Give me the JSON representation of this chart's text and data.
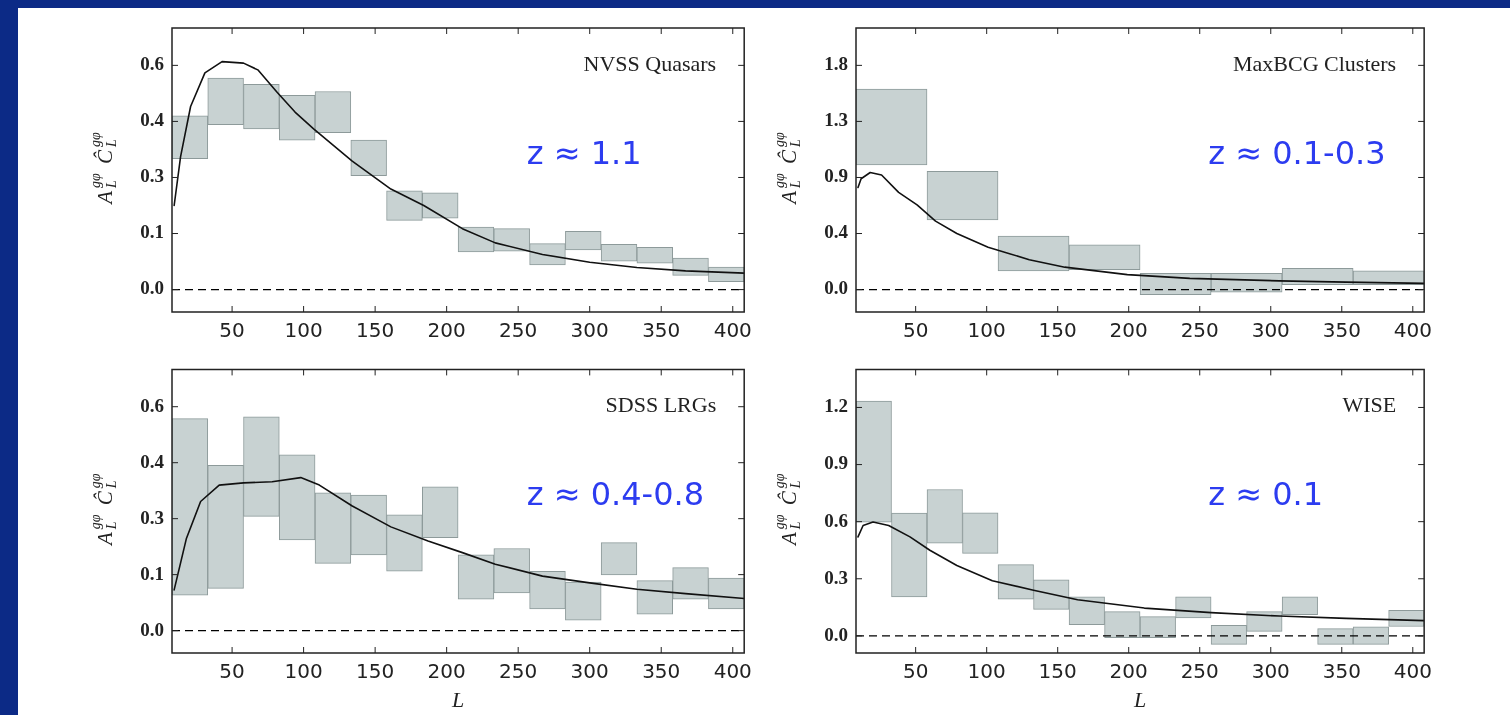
{
  "chart_data": [
    {
      "type": "bar",
      "title": "NVSS Quasars",
      "ylabel": "A$_{L}$$^{gφ}$ Ĉ$_{L}$$^{gφ}$",
      "annotations": [
        "z ≈ 1.1"
      ],
      "xlim": [
        8,
        408
      ],
      "xticks": [
        50,
        100,
        150,
        200,
        250,
        300,
        350,
        400
      ],
      "ylim": [
        -0.06,
        0.7
      ],
      "yticks": [
        {
          "value": 0,
          "label": "0.0"
        },
        {
          "value": 0.15,
          "label": "0.1"
        },
        {
          "value": 0.3,
          "label": "0.3"
        },
        {
          "value": 0.45,
          "label": "0.4"
        },
        {
          "value": 0.6,
          "label": "0.6"
        }
      ],
      "ref_lines": [
        {
          "axis": "y",
          "value": 0,
          "color": "#000000",
          "line_style": "dashed"
        }
      ],
      "series": [
        {
          "color": "#c8d2d2",
          "x": [
            20.5,
            45.5,
            70.5,
            95.5,
            120.5,
            145.5,
            170.5,
            195.5,
            220.5,
            245.5,
            270.5,
            295.5,
            320.5,
            345.5,
            370.5,
            395.5
          ],
          "base": [
            0.35,
            0.441,
            0.43,
            0.4,
            0.42,
            0.305,
            0.185,
            0.191,
            0.101,
            0.103,
            0.066,
            0.106,
            0.076,
            0.071,
            0.038,
            0.021
          ],
          "values": [
            0.115,
            0.125,
            0.119,
            0.12,
            0.11,
            0.095,
            0.079,
            0.068,
            0.066,
            0.06,
            0.057,
            0.05,
            0.045,
            0.042,
            0.046,
            0.039
          ]
        },
        {
          "type": "line",
          "color": "#111111",
          "x": [
            9.5,
            14,
            21,
            31,
            43,
            58,
            68,
            81,
            94,
            107,
            134,
            161,
            184,
            211,
            234,
            267,
            300,
            333,
            367,
            408
          ],
          "values": [
            0.225,
            0.356,
            0.49,
            0.58,
            0.61,
            0.606,
            0.588,
            0.53,
            0.475,
            0.43,
            0.344,
            0.269,
            0.225,
            0.163,
            0.125,
            0.094,
            0.073,
            0.059,
            0.05,
            0.044
          ]
        }
      ]
    },
    {
      "type": "bar",
      "title": "MaxBCG Clusters",
      "ylabel": "A$_{L}$$^{gφ}$ Ĉ$_{L}$$^{gφ}$",
      "annotations": [
        "z ≈ 0.1-0.3"
      ],
      "xlim": [
        8,
        408
      ],
      "xticks": [
        50,
        100,
        150,
        200,
        250,
        300,
        350,
        400
      ],
      "ylim": [
        -0.18,
        2.1
      ],
      "yticks": [
        {
          "value": 0,
          "label": "0.0"
        },
        {
          "value": 0.45,
          "label": "0.4"
        },
        {
          "value": 0.9,
          "label": "0.9"
        },
        {
          "value": 1.35,
          "label": "1.3"
        },
        {
          "value": 1.8,
          "label": "1.8"
        }
      ],
      "ref_lines": [
        {
          "axis": "y",
          "value": 0,
          "color": "#000000",
          "line_style": "dashed"
        }
      ],
      "series": [
        {
          "color": "#c8d2d2",
          "x": [
            33,
            83,
            133,
            183,
            233,
            283,
            333,
            383
          ],
          "base": [
            1.0,
            0.56,
            0.15,
            0.16,
            -0.04,
            -0.02,
            0.04,
            0.04
          ],
          "values": [
            0.61,
            0.39,
            0.28,
            0.2,
            0.17,
            0.15,
            0.13,
            0.11
          ]
        },
        {
          "type": "line",
          "color": "#111111",
          "x": [
            9.4,
            11.6,
            18,
            26,
            38,
            51,
            64,
            79,
            101,
            130,
            155,
            199,
            243,
            306,
            353,
            408
          ],
          "values": [
            0.82,
            0.89,
            0.94,
            0.92,
            0.78,
            0.68,
            0.55,
            0.45,
            0.34,
            0.24,
            0.18,
            0.12,
            0.09,
            0.07,
            0.06,
            0.05
          ]
        }
      ]
    },
    {
      "type": "bar",
      "title": "SDSS LRGs",
      "xlabel": "L",
      "ylabel": "A$_{L}$$^{gφ}$ Ĉ$_{L}$$^{gφ}$",
      "annotations": [
        "z ≈ 0.4-0.8"
      ],
      "xlim": [
        8,
        408
      ],
      "xticks": [
        50,
        100,
        150,
        200,
        250,
        300,
        350,
        400
      ],
      "ylim": [
        -0.06,
        0.7
      ],
      "yticks": [
        {
          "value": 0,
          "label": "0.0"
        },
        {
          "value": 0.15,
          "label": "0.1"
        },
        {
          "value": 0.3,
          "label": "0.3"
        },
        {
          "value": 0.45,
          "label": "0.4"
        },
        {
          "value": 0.6,
          "label": "0.6"
        }
      ],
      "ref_lines": [
        {
          "axis": "y",
          "value": 0,
          "color": "#000000",
          "line_style": "dashed"
        }
      ],
      "series": [
        {
          "color": "#c8d2d2",
          "x": [
            20.5,
            45.5,
            70.5,
            95.5,
            120.5,
            145.5,
            170.5,
            195.5,
            220.5,
            245.5,
            270.5,
            295.5,
            320.5,
            345.5,
            370.5,
            395.5
          ],
          "base": [
            0.095,
            0.113,
            0.306,
            0.243,
            0.18,
            0.203,
            0.159,
            0.249,
            0.084,
            0.101,
            0.058,
            0.028,
            0.149,
            0.044,
            0.084,
            0.058
          ],
          "values": [
            0.473,
            0.33,
            0.267,
            0.228,
            0.189,
            0.16,
            0.151,
            0.136,
            0.119,
            0.119,
            0.101,
            0.102,
            0.087,
            0.09,
            0.085,
            0.083
          ]
        },
        {
          "type": "line",
          "color": "#111111",
          "x": [
            9.5,
            18,
            28,
            41,
            58,
            78,
            98,
            111,
            134,
            161,
            187,
            211,
            234,
            267,
            300,
            333,
            367,
            408
          ],
          "values": [
            0.109,
            0.246,
            0.346,
            0.39,
            0.396,
            0.399,
            0.41,
            0.39,
            0.334,
            0.278,
            0.24,
            0.209,
            0.178,
            0.146,
            0.128,
            0.111,
            0.099,
            0.086
          ]
        }
      ]
    },
    {
      "type": "bar",
      "title": "WISE",
      "xlabel": "L",
      "ylabel": "A$_{L}$$^{gφ}$ Ĉ$_{L}$$^{gφ}$",
      "annotations": [
        "z ≈ 0.1"
      ],
      "xlim": [
        8,
        408
      ],
      "xticks": [
        50,
        100,
        150,
        200,
        250,
        300,
        350,
        400
      ],
      "ylim": [
        -0.09,
        1.4
      ],
      "yticks": [
        {
          "value": 0,
          "label": "0.0"
        },
        {
          "value": 0.3,
          "label": "0.3"
        },
        {
          "value": 0.6,
          "label": "0.6"
        },
        {
          "value": 0.9,
          "label": "0.9"
        },
        {
          "value": 1.2,
          "label": "1.2"
        }
      ],
      "ref_lines": [
        {
          "axis": "y",
          "value": 0,
          "color": "#000000",
          "line_style": "dashed"
        }
      ],
      "series": [
        {
          "color": "#c8d2d2",
          "x": [
            20.5,
            45.5,
            70.5,
            95.5,
            120.5,
            145.5,
            170.5,
            195.5,
            220.5,
            245.5,
            270.5,
            295.5,
            320.5,
            345.5,
            370.5,
            395.5
          ],
          "base": [
            0.598,
            0.205,
            0.487,
            0.433,
            0.193,
            0.139,
            0.059,
            -0.009,
            -0.009,
            0.094,
            -0.045,
            0.024,
            0.111,
            -0.045,
            -0.045,
            0.049
          ],
          "values": [
            0.635,
            0.44,
            0.282,
            0.214,
            0.181,
            0.155,
            0.146,
            0.136,
            0.11,
            0.111,
            0.101,
            0.103,
            0.094,
            0.083,
            0.092,
            0.085
          ]
        },
        {
          "type": "line",
          "color": "#111111",
          "x": [
            9.4,
            13,
            20,
            31,
            46,
            60,
            79,
            104,
            133,
            164,
            211,
            258,
            306,
            353,
            408
          ],
          "values": [
            0.52,
            0.58,
            0.598,
            0.58,
            0.52,
            0.45,
            0.37,
            0.29,
            0.24,
            0.19,
            0.146,
            0.122,
            0.104,
            0.092,
            0.08
          ]
        }
      ]
    }
  ]
}
